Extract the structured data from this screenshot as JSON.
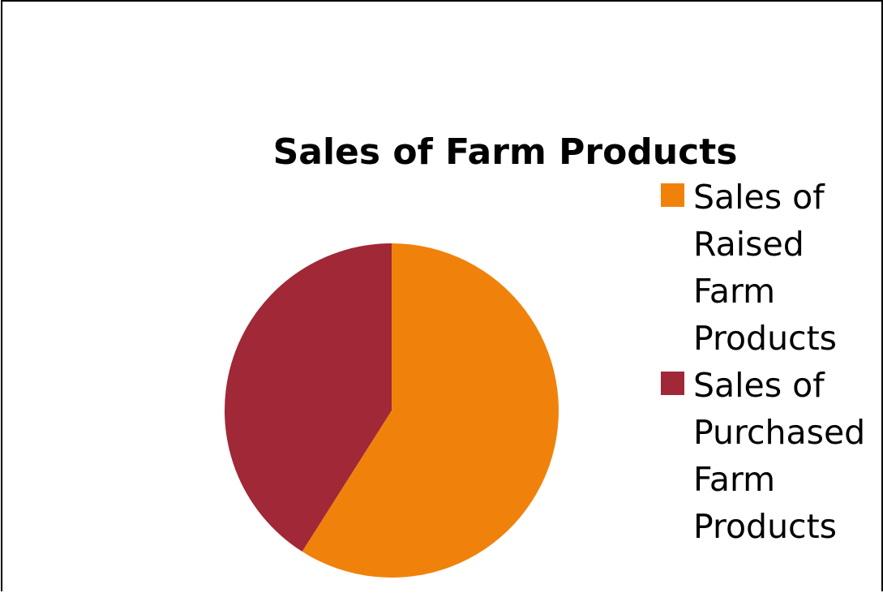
{
  "chart_data": {
    "type": "pie",
    "title": "Sales of Farm Products",
    "series": [
      {
        "name": "Sales of Raised Farm Products",
        "label_lines": [
          "Sales of",
          "Raised",
          "Farm",
          "Products"
        ],
        "value": 59,
        "color": "#F0820C"
      },
      {
        "name": "Sales of Purchased Farm Products",
        "label_lines": [
          "Sales of",
          "Purchased",
          "Farm",
          "Products"
        ],
        "value": 41,
        "color": "#A02837"
      }
    ],
    "start": "12 o'clock",
    "direction": "clockwise",
    "legend_position": "right"
  }
}
